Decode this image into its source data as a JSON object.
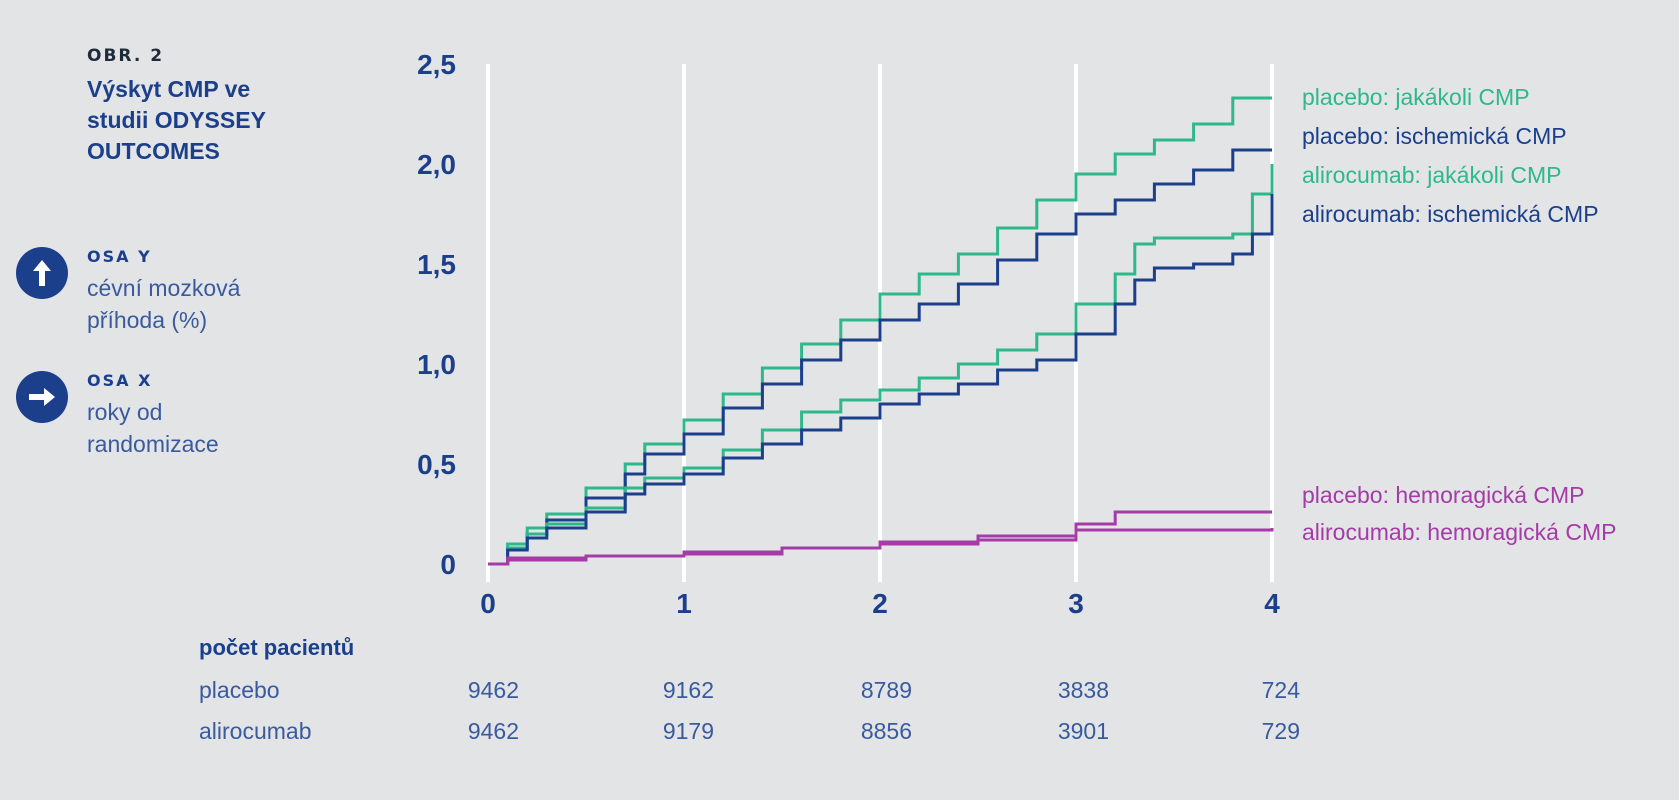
{
  "figure": {
    "label": "OBR. 2",
    "title": "Výskyt CMP ve studii ODYSSEY OUTCOMES"
  },
  "axes_info": {
    "y": {
      "icon": "arrow-up-icon",
      "heading": "OSA Y",
      "description": "cévní mozková příhoda (%)"
    },
    "x": {
      "icon": "arrow-right-icon",
      "heading": "OSA X",
      "description": "roky od randomizace"
    }
  },
  "patients_table": {
    "heading": "počet pacientů",
    "rows": [
      {
        "label": "placebo",
        "values": [
          "9462",
          "9162",
          "8789",
          "3838",
          "724"
        ]
      },
      {
        "label": "alirocumab",
        "values": [
          "9462",
          "9179",
          "8856",
          "3901",
          "729"
        ]
      }
    ]
  },
  "colors": {
    "placebo_any": "#2fb88a",
    "placebo_ischemic": "#1c3f8c",
    "alirocumab_any": "#2fb88a",
    "alirocumab_ischemic": "#1c3f8c",
    "hemorrhagic": "#a43ba7",
    "axis_text": "#1c3f8c",
    "grid": "#ffffff",
    "background": "#e3e4e6"
  },
  "chart_data": {
    "type": "line",
    "step": true,
    "xlim": [
      0,
      4
    ],
    "ylim": [
      0,
      2.5
    ],
    "x_ticks": [
      0,
      1,
      2,
      3,
      4
    ],
    "x_tick_labels": [
      "0",
      "1",
      "2",
      "3",
      "4"
    ],
    "y_ticks": [
      0,
      0.5,
      1.0,
      1.5,
      2.0,
      2.5
    ],
    "y_tick_labels": [
      "0",
      "0,5",
      "1,0",
      "1,5",
      "2,0",
      "2,5"
    ],
    "grid": "vertical",
    "legend": "right, labels at line ends",
    "series": [
      {
        "name": "placebo: jakákoli CMP",
        "color_key": "placebo_any",
        "x": [
          0,
          0.1,
          0.2,
          0.3,
          0.5,
          0.7,
          0.8,
          1.0,
          1.2,
          1.4,
          1.6,
          1.8,
          2.0,
          2.2,
          2.4,
          2.6,
          2.8,
          3.0,
          3.2,
          3.4,
          3.6,
          3.8,
          4.0
        ],
        "y": [
          0,
          0.1,
          0.18,
          0.25,
          0.38,
          0.5,
          0.6,
          0.72,
          0.85,
          0.98,
          1.1,
          1.22,
          1.35,
          1.45,
          1.55,
          1.68,
          1.82,
          1.95,
          2.05,
          2.12,
          2.2,
          2.33,
          2.33
        ]
      },
      {
        "name": "placebo: ischemická CMP",
        "color_key": "placebo_ischemic",
        "x": [
          0,
          0.1,
          0.2,
          0.3,
          0.5,
          0.7,
          0.8,
          1.0,
          1.2,
          1.4,
          1.6,
          1.8,
          2.0,
          2.2,
          2.4,
          2.6,
          2.8,
          3.0,
          3.2,
          3.4,
          3.6,
          3.8,
          4.0
        ],
        "y": [
          0,
          0.08,
          0.15,
          0.22,
          0.33,
          0.45,
          0.55,
          0.65,
          0.78,
          0.9,
          1.02,
          1.12,
          1.22,
          1.3,
          1.4,
          1.52,
          1.65,
          1.75,
          1.82,
          1.9,
          1.97,
          2.07,
          2.07
        ]
      },
      {
        "name": "alirocumab: jakákoli CMP",
        "color_key": "alirocumab_any",
        "x": [
          0,
          0.1,
          0.2,
          0.3,
          0.5,
          0.7,
          0.8,
          1.0,
          1.2,
          1.4,
          1.6,
          1.8,
          2.0,
          2.2,
          2.4,
          2.6,
          2.8,
          3.0,
          3.2,
          3.3,
          3.4,
          3.6,
          3.8,
          3.9,
          4.0
        ],
        "y": [
          0,
          0.08,
          0.15,
          0.2,
          0.28,
          0.38,
          0.43,
          0.48,
          0.57,
          0.67,
          0.76,
          0.82,
          0.87,
          0.93,
          1.0,
          1.07,
          1.15,
          1.3,
          1.45,
          1.6,
          1.63,
          1.63,
          1.65,
          1.85,
          2.0
        ]
      },
      {
        "name": "alirocumab: ischemická CMP",
        "color_key": "alirocumab_ischemic",
        "x": [
          0,
          0.1,
          0.2,
          0.3,
          0.5,
          0.7,
          0.8,
          1.0,
          1.2,
          1.4,
          1.6,
          1.8,
          2.0,
          2.2,
          2.4,
          2.6,
          2.8,
          3.0,
          3.2,
          3.3,
          3.4,
          3.6,
          3.8,
          3.9,
          4.0
        ],
        "y": [
          0,
          0.07,
          0.13,
          0.18,
          0.26,
          0.35,
          0.4,
          0.45,
          0.53,
          0.6,
          0.67,
          0.73,
          0.8,
          0.85,
          0.9,
          0.97,
          1.02,
          1.15,
          1.3,
          1.42,
          1.48,
          1.5,
          1.55,
          1.65,
          1.85
        ]
      },
      {
        "name": "placebo: hemoragická CMP",
        "color_key": "hemorrhagic",
        "x": [
          0,
          0.1,
          0.5,
          1.0,
          1.5,
          2.0,
          2.5,
          3.0,
          3.2,
          4.0
        ],
        "y": [
          0,
          0.03,
          0.04,
          0.05,
          0.08,
          0.11,
          0.14,
          0.2,
          0.26,
          0.26
        ]
      },
      {
        "name": "alirocumab: hemoragická CMP",
        "color_key": "hemorrhagic",
        "x": [
          0,
          0.1,
          0.5,
          1.0,
          1.5,
          2.0,
          2.5,
          3.0,
          4.0
        ],
        "y": [
          0,
          0.02,
          0.04,
          0.06,
          0.08,
          0.1,
          0.12,
          0.17,
          0.18
        ]
      }
    ]
  }
}
